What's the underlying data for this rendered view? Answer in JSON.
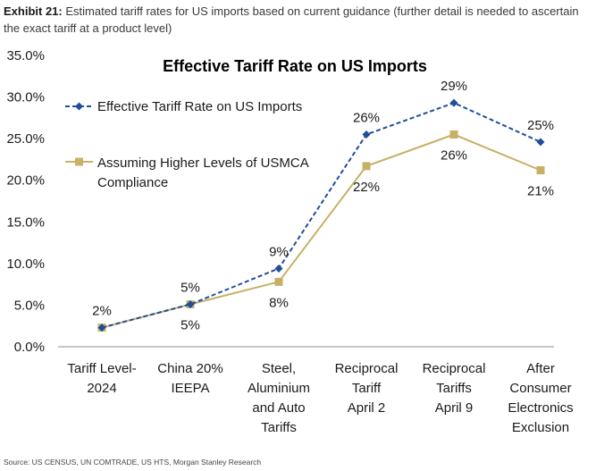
{
  "exhibit": {
    "label": "Exhibit 21:",
    "text": "Estimated tariff rates for US imports based on current guidance (further detail is needed to ascertain the exact tariff at a product level)"
  },
  "source": "Source: US CENSUS, UN COMTRADE, US HTS, Morgan Stanley Research",
  "chart_data": {
    "type": "line",
    "title": "Effective Tariff Rate on US Imports",
    "xlabel": "",
    "ylabel": "",
    "ylim": [
      0,
      35
    ],
    "yticks": [
      0,
      5,
      10,
      15,
      20,
      25,
      30,
      35
    ],
    "ytick_labels": [
      "0.0%",
      "5.0%",
      "10.0%",
      "15.0%",
      "20.0%",
      "25.0%",
      "30.0%",
      "35.0%"
    ],
    "categories": [
      [
        "Tariff Level-",
        "2024"
      ],
      [
        "China 20%",
        "IEEPA"
      ],
      [
        "Steel,",
        "Aluminium",
        "and Auto",
        "Tariffs"
      ],
      [
        "Reciprocal",
        "Tariff",
        "April 2"
      ],
      [
        "Reciprocal",
        "Tariffs",
        "April 9"
      ],
      [
        "After",
        "Consumer",
        "Electronics",
        "Exclusion"
      ]
    ],
    "legend_position": "top-left",
    "grid": false,
    "series": [
      {
        "name": "Effective Tariff Rate on US Imports",
        "color": "#1f4e9a",
        "style": "dashed",
        "marker": "diamond",
        "values": [
          2.3,
          5.1,
          9.4,
          25.5,
          29.3,
          24.6
        ],
        "labels": [
          "2%",
          "5%",
          "9%",
          "26%",
          "29%",
          "25%"
        ],
        "label_position": "above"
      },
      {
        "name": "Assuming Higher Levels of USMCA Compliance",
        "legend_lines": [
          "Assuming Higher Levels of USMCA",
          "Compliance"
        ],
        "color": "#c8b068",
        "style": "solid",
        "marker": "square",
        "values": [
          2.3,
          5.1,
          7.8,
          21.7,
          25.5,
          21.2
        ],
        "labels": [
          "",
          "5%",
          "8%",
          "22%",
          "26%",
          "21%"
        ],
        "label_position": "below"
      }
    ]
  }
}
